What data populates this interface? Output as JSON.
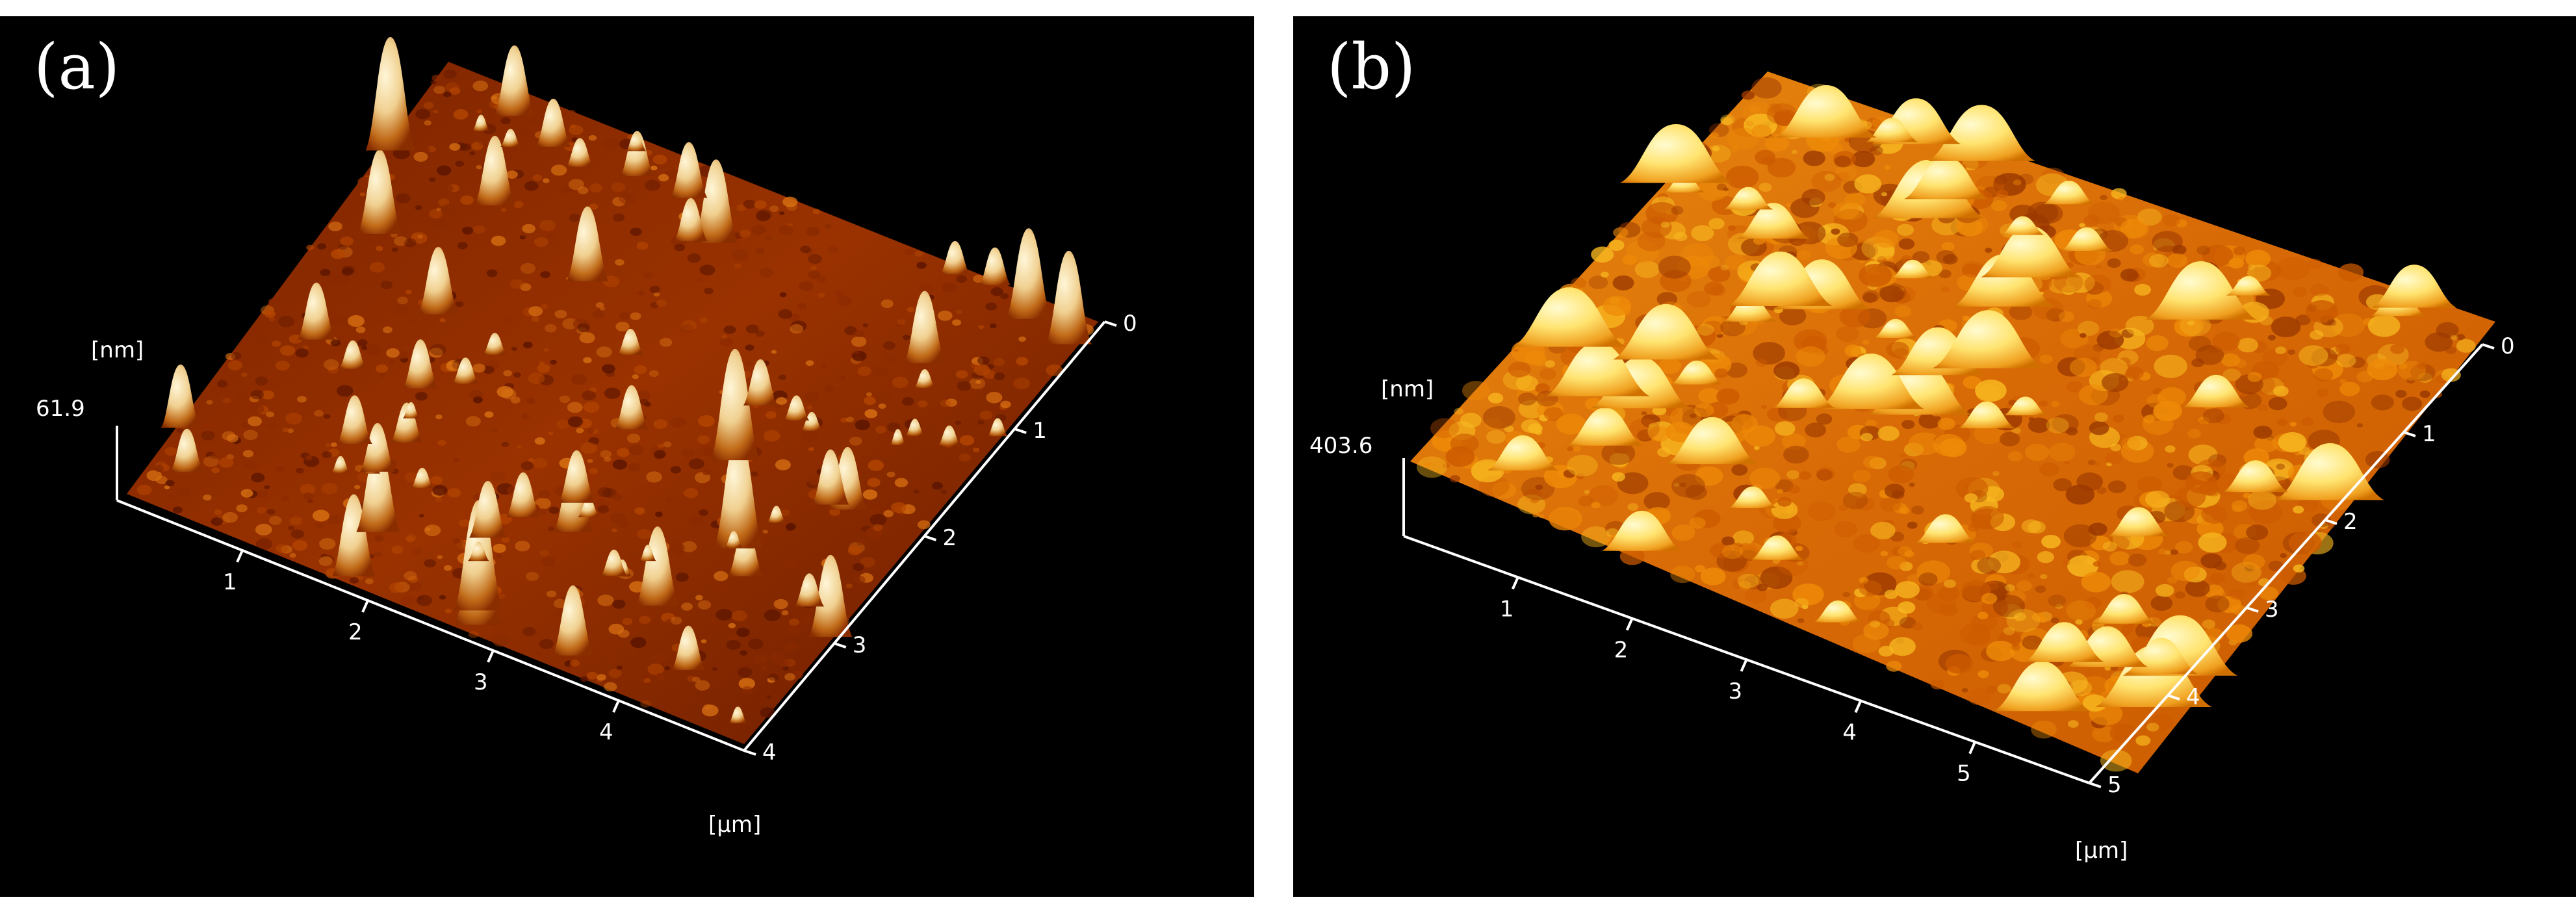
{
  "panels": [
    {
      "label": "(a)",
      "z_unit": "[nm]",
      "z_max": "61.9",
      "xy_unit": "[µm]",
      "x_ticks": [
        "1",
        "2",
        "3",
        "4"
      ],
      "y_ticks": [
        "0",
        "1",
        "2",
        "3",
        "4"
      ],
      "palette": [
        "#5a1400",
        "#8a2a00",
        "#b34500",
        "#d87012",
        "#f6e6b0"
      ]
    },
    {
      "label": "(b)",
      "z_unit": "[nm]",
      "z_max": "403.6",
      "xy_unit": "[µm]",
      "x_ticks": [
        "1",
        "2",
        "3",
        "4",
        "5"
      ],
      "y_ticks": [
        "0",
        "1",
        "2",
        "3",
        "4",
        "5"
      ],
      "palette": [
        "#9a3800",
        "#cc5a00",
        "#ee8a08",
        "#f8b820",
        "#ffee88"
      ]
    }
  ]
}
